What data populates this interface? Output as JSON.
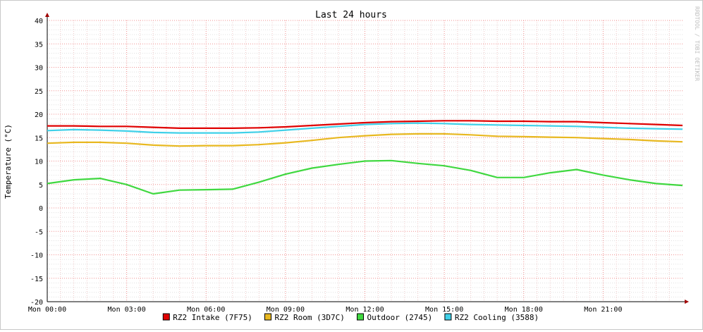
{
  "chart_data": {
    "type": "line",
    "title": "Last 24 hours",
    "ylabel": "Temperature (°C)",
    "watermark": "RRDTOOL / TOBI OETIKER",
    "ylim": [
      -20,
      40
    ],
    "y_ticks": [
      40,
      35,
      30,
      25,
      20,
      15,
      10,
      5,
      0,
      -5,
      -10,
      -15,
      -20
    ],
    "x_range_hours": [
      0,
      24
    ],
    "x_tick_hours": [
      0,
      3,
      6,
      9,
      12,
      15,
      18,
      21
    ],
    "x_tick_labels": [
      "Mon 00:00",
      "Mon 03:00",
      "Mon 06:00",
      "Mon 09:00",
      "Mon 12:00",
      "Mon 15:00",
      "Mon 18:00",
      "Mon 21:00"
    ],
    "grid": true,
    "legend_position": "bottom",
    "series": [
      {
        "name": "RZ2 Intake (7F75)",
        "color": "#e00000",
        "x": [
          0,
          1,
          2,
          3,
          4,
          5,
          6,
          7,
          8,
          9,
          10,
          11,
          12,
          13,
          14,
          15,
          16,
          17,
          18,
          19,
          20,
          21,
          22,
          23,
          24
        ],
        "y": [
          17.5,
          17.5,
          17.4,
          17.4,
          17.2,
          17.0,
          17.0,
          17.0,
          17.1,
          17.3,
          17.6,
          17.9,
          18.2,
          18.4,
          18.5,
          18.6,
          18.6,
          18.5,
          18.5,
          18.4,
          18.4,
          18.2,
          18.0,
          17.8,
          17.6
        ]
      },
      {
        "name": "RZ2 Room (3D7C)",
        "color": "#e8b820",
        "x": [
          0,
          1,
          2,
          3,
          4,
          5,
          6,
          7,
          8,
          9,
          10,
          11,
          12,
          13,
          14,
          15,
          16,
          17,
          18,
          19,
          20,
          21,
          22,
          23,
          24
        ],
        "y": [
          13.8,
          14.0,
          14.0,
          13.8,
          13.4,
          13.2,
          13.3,
          13.3,
          13.5,
          13.9,
          14.4,
          15.0,
          15.4,
          15.7,
          15.8,
          15.8,
          15.6,
          15.3,
          15.2,
          15.1,
          15.0,
          14.8,
          14.6,
          14.3,
          14.1
        ]
      },
      {
        "name": "Outdoor (2745)",
        "color": "#40d840",
        "x": [
          0,
          1,
          2,
          3,
          4,
          5,
          6,
          7,
          8,
          9,
          10,
          11,
          12,
          13,
          14,
          15,
          16,
          17,
          18,
          19,
          20,
          21,
          22,
          23,
          24
        ],
        "y": [
          5.2,
          6.0,
          6.3,
          5.0,
          3.0,
          3.8,
          3.9,
          4.0,
          5.5,
          7.2,
          8.5,
          9.3,
          10.0,
          10.1,
          9.5,
          9.0,
          8.0,
          6.5,
          6.5,
          7.5,
          8.2,
          7.0,
          6.0,
          5.2,
          4.8
        ]
      },
      {
        "name": "RZ2 Cooling (3588)",
        "color": "#40d0e8",
        "x": [
          0,
          1,
          2,
          3,
          4,
          5,
          6,
          7,
          8,
          9,
          10,
          11,
          12,
          13,
          14,
          15,
          16,
          17,
          18,
          19,
          20,
          21,
          22,
          23,
          24
        ],
        "y": [
          16.5,
          16.7,
          16.6,
          16.4,
          16.1,
          16.0,
          16.0,
          16.0,
          16.2,
          16.6,
          17.0,
          17.4,
          17.8,
          18.0,
          18.1,
          18.0,
          17.8,
          17.7,
          17.6,
          17.5,
          17.4,
          17.2,
          17.0,
          16.9,
          16.8
        ]
      }
    ]
  }
}
